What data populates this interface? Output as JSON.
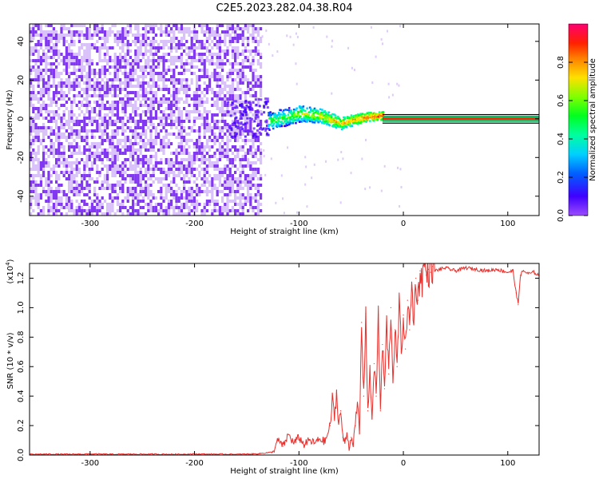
{
  "figure_title": "C2E5.2023.282.04.38.R04",
  "colors": {
    "noise": "#7b2cf0",
    "noise_light": "#c9a6f7",
    "snr_line": "#e8302c",
    "axis": "#000000",
    "colorbar": [
      "#7a00ff",
      "#2000ff",
      "#00a0ff",
      "#00ffd0",
      "#00ff20",
      "#80ff00",
      "#ffe000",
      "#ff8000",
      "#ff2000",
      "#ff0060"
    ]
  },
  "chart_data": [
    {
      "type": "heatmap",
      "title": "",
      "xlabel": "Height of straight line (km)",
      "ylabel": "Frequency (Hz)",
      "xlim": [
        -358,
        130
      ],
      "ylim": [
        -50,
        49
      ],
      "xticks": [
        -300,
        -200,
        -100,
        0,
        100
      ],
      "xtick_labels": [
        "-300",
        "-200",
        "-100",
        "0",
        "100"
      ],
      "yticks": [
        -40,
        -20,
        0,
        20,
        40
      ],
      "ytick_labels": [
        "-40",
        "-20",
        "0",
        "20",
        "40"
      ],
      "colorbar": {
        "label": "Normalized spectral amplitude",
        "range": [
          0.0,
          1.0
        ],
        "ticks": [
          0.0,
          0.2,
          0.4,
          0.6,
          0.8
        ],
        "tick_labels": [
          "0.0",
          "0.2",
          "0.4",
          "0.6",
          "0.8"
        ]
      },
      "regions": [
        {
          "name": "broadband noise",
          "x_range": [
            -358,
            -137
          ],
          "freq_range": [
            -50,
            49
          ],
          "amplitude": 0.05
        },
        {
          "name": "transition",
          "x_range": [
            -170,
            -130
          ],
          "freq_range": [
            -10,
            10
          ],
          "amplitude": 0.1
        },
        {
          "name": "signal onset",
          "x_range": [
            -130,
            -20
          ],
          "center_freq_hz": [
            [
              -130,
              -2
            ],
            [
              -100,
              2
            ],
            [
              -80,
              1
            ],
            [
              -60,
              -3
            ],
            [
              -40,
              0
            ],
            [
              -20,
              1
            ]
          ],
          "width_hz": 10,
          "amplitude": 0.45
        },
        {
          "name": "steady carrier",
          "x_range": [
            -20,
            130
          ],
          "center_freq_hz": 0,
          "width_hz": 2,
          "amplitude": 0.9
        }
      ]
    },
    {
      "type": "line",
      "title": "",
      "xlabel": "Height of straight line (km)",
      "ylabel": "SNR (10 * v/v)",
      "ylabel_exponent": "(x10",
      "ylabel_exponent_power": "4",
      "ylabel_exponent_close": ")",
      "xlim": [
        -358,
        130
      ],
      "ylim": [
        0.0,
        1.3
      ],
      "xticks": [
        -300,
        -200,
        -100,
        0,
        100
      ],
      "xtick_labels": [
        "-300",
        "-200",
        "-100",
        "0",
        "100"
      ],
      "yticks": [
        0.0,
        0.2,
        0.4,
        0.6,
        0.8,
        1.0,
        1.2
      ],
      "ytick_labels": [
        "0.0",
        "0.2",
        "0.4",
        "0.6",
        "0.8",
        "1.0",
        "1.2"
      ],
      "series": [
        {
          "x": [
            -358,
            -340,
            -320,
            -300,
            -280,
            -260,
            -240,
            -220,
            -200,
            -180,
            -160,
            -140,
            -125,
            -120,
            -115,
            -110,
            -105,
            -100,
            -95,
            -90,
            -85,
            -80,
            -75,
            -70,
            -68,
            -66,
            -64,
            -62,
            -60,
            -58,
            -56,
            -54,
            -52,
            -50,
            -48,
            -46,
            -44,
            -42,
            -40,
            -38,
            -36,
            -34,
            -32,
            -30,
            -28,
            -26,
            -24,
            -22,
            -20,
            -18,
            -16,
            -14,
            -12,
            -10,
            -8,
            -6,
            -4,
            -2,
            0,
            2,
            4,
            6,
            8,
            10,
            12,
            14,
            16,
            18,
            20,
            22,
            24,
            26,
            28,
            30,
            35,
            40,
            50,
            60,
            70,
            80,
            90,
            100,
            105,
            108,
            110,
            112,
            115,
            120,
            125,
            130
          ],
          "y": [
            0.005,
            0.006,
            0.005,
            0.007,
            0.005,
            0.006,
            0.006,
            0.005,
            0.007,
            0.006,
            0.005,
            0.008,
            0.02,
            0.1,
            0.06,
            0.14,
            0.08,
            0.12,
            0.07,
            0.1,
            0.08,
            0.11,
            0.09,
            0.2,
            0.38,
            0.25,
            0.42,
            0.22,
            0.3,
            0.12,
            0.08,
            0.15,
            0.05,
            0.12,
            0.08,
            0.2,
            0.35,
            0.15,
            0.9,
            0.4,
            0.96,
            0.3,
            0.55,
            0.25,
            0.62,
            0.4,
            0.95,
            0.3,
            0.75,
            0.45,
            0.9,
            0.55,
            1.0,
            0.5,
            0.85,
            0.6,
            1.02,
            0.7,
            0.95,
            0.72,
            1.05,
            0.85,
            1.15,
            0.9,
            1.2,
            1.05,
            1.25,
            1.18,
            1.3,
            1.22,
            1.26,
            1.24,
            1.28,
            1.25,
            1.26,
            1.27,
            1.25,
            1.27,
            1.26,
            1.25,
            1.26,
            1.24,
            1.25,
            1.1,
            1.02,
            1.22,
            1.25,
            1.23,
            1.24,
            1.22
          ]
        }
      ]
    }
  ]
}
